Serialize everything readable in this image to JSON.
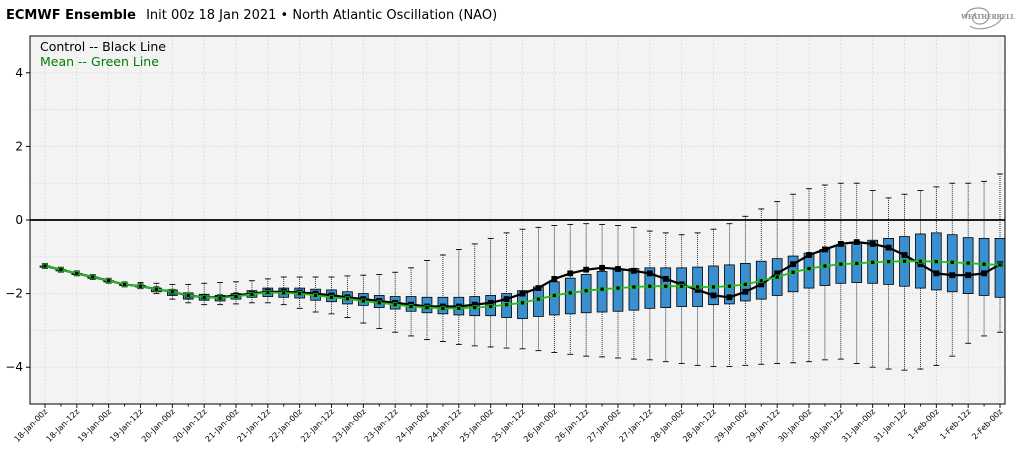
{
  "header": {
    "brand": "ECMWF Ensemble",
    "subtitle": "Init 00z 18 Jan 2021 • North Atlantic Oscillation (NAO)",
    "logo_text": "WEATHERBELL"
  },
  "legend": {
    "control_label": "Control -- Black Line",
    "mean_label": "Mean -- Green Line"
  },
  "colors": {
    "box_fill": "#3a8fd0",
    "control_line": "#000000",
    "mean_line": "#22bb22",
    "mean_label": "#008000",
    "plot_bg": "#f3f3f3"
  },
  "chart_data": {
    "type": "box",
    "title": "ECMWF Ensemble Init 00z 18 Jan 2021 • North Atlantic Oscillation (NAO)",
    "xlabel": "",
    "ylabel": "",
    "ylim": [
      -5,
      5
    ],
    "yticks": [
      4,
      2,
      0,
      -2,
      -4
    ],
    "grid": true,
    "x_tick_labels": [
      "18-Jan-00z",
      "18-Jan-12z",
      "19-Jan-00z",
      "19-Jan-12z",
      "20-Jan-00z",
      "20-Jan-12z",
      "21-Jan-00z",
      "21-Jan-12z",
      "22-Jan-00z",
      "22-Jan-12z",
      "23-Jan-00z",
      "23-Jan-12z",
      "24-Jan-00z",
      "24-Jan-12z",
      "25-Jan-00z",
      "25-Jan-12z",
      "26-Jan-00z",
      "26-Jan-12z",
      "27-Jan-00z",
      "27-Jan-12z",
      "28-Jan-00z",
      "28-Jan-12z",
      "29-Jan-00z",
      "29-Jan-12z",
      "30-Jan-00z",
      "30-Jan-12z",
      "31-Jan-00z",
      "31-Jan-12z",
      "1-Feb-00z",
      "1-Feb-12z",
      "2-Feb-00z"
    ],
    "steps_per_label": 2,
    "steps": 61,
    "control": [
      -1.25,
      -1.35,
      -1.45,
      -1.55,
      -1.65,
      -1.75,
      -1.8,
      -1.88,
      -1.95,
      -2.05,
      -2.1,
      -2.1,
      -2.05,
      -2.0,
      -1.95,
      -1.95,
      -1.97,
      -2.0,
      -2.05,
      -2.1,
      -2.15,
      -2.2,
      -2.25,
      -2.3,
      -2.35,
      -2.35,
      -2.35,
      -2.3,
      -2.25,
      -2.15,
      -2.0,
      -1.85,
      -1.6,
      -1.45,
      -1.35,
      -1.3,
      -1.33,
      -1.38,
      -1.45,
      -1.6,
      -1.75,
      -1.9,
      -2.05,
      -2.1,
      -1.95,
      -1.75,
      -1.45,
      -1.2,
      -0.95,
      -0.8,
      -0.65,
      -0.6,
      -0.65,
      -0.75,
      -0.95,
      -1.2,
      -1.45,
      -1.5,
      -1.5,
      -1.45,
      -1.2
    ],
    "mean": [
      -1.25,
      -1.35,
      -1.45,
      -1.55,
      -1.65,
      -1.75,
      -1.8,
      -1.88,
      -1.95,
      -2.05,
      -2.1,
      -2.12,
      -2.08,
      -2.02,
      -1.97,
      -1.98,
      -2.0,
      -2.05,
      -2.1,
      -2.14,
      -2.2,
      -2.25,
      -2.3,
      -2.35,
      -2.38,
      -2.4,
      -2.4,
      -2.38,
      -2.35,
      -2.3,
      -2.25,
      -2.15,
      -2.05,
      -1.98,
      -1.92,
      -1.88,
      -1.85,
      -1.82,
      -1.8,
      -1.8,
      -1.8,
      -1.82,
      -1.82,
      -1.8,
      -1.75,
      -1.65,
      -1.55,
      -1.42,
      -1.32,
      -1.25,
      -1.2,
      -1.18,
      -1.15,
      -1.13,
      -1.12,
      -1.12,
      -1.13,
      -1.15,
      -1.17,
      -1.2,
      -1.22
    ],
    "box_q1": [
      -1.25,
      -1.35,
      -1.45,
      -1.55,
      -1.65,
      -1.75,
      -1.82,
      -1.95,
      -2.05,
      -2.15,
      -2.18,
      -2.2,
      -2.15,
      -2.1,
      -2.08,
      -2.1,
      -2.12,
      -2.18,
      -2.22,
      -2.28,
      -2.32,
      -2.38,
      -2.42,
      -2.48,
      -2.52,
      -2.55,
      -2.58,
      -2.6,
      -2.6,
      -2.65,
      -2.68,
      -2.62,
      -2.58,
      -2.55,
      -2.52,
      -2.5,
      -2.48,
      -2.45,
      -2.4,
      -2.38,
      -2.35,
      -2.35,
      -2.3,
      -2.28,
      -2.2,
      -2.15,
      -2.05,
      -1.95,
      -1.85,
      -1.78,
      -1.72,
      -1.7,
      -1.72,
      -1.75,
      -1.8,
      -1.85,
      -1.9,
      -1.95,
      -2.0,
      -2.05,
      -2.1
    ],
    "box_q3": [
      -1.25,
      -1.35,
      -1.45,
      -1.55,
      -1.65,
      -1.75,
      -1.78,
      -1.85,
      -1.9,
      -1.98,
      -2.02,
      -2.05,
      -2.0,
      -1.92,
      -1.85,
      -1.85,
      -1.85,
      -1.88,
      -1.9,
      -1.95,
      -2.0,
      -2.05,
      -2.08,
      -2.08,
      -2.1,
      -2.1,
      -2.1,
      -2.08,
      -2.05,
      -2.0,
      -1.92,
      -1.82,
      -1.68,
      -1.58,
      -1.48,
      -1.4,
      -1.35,
      -1.32,
      -1.3,
      -1.3,
      -1.3,
      -1.28,
      -1.25,
      -1.22,
      -1.18,
      -1.12,
      -1.05,
      -0.98,
      -0.9,
      -0.8,
      -0.7,
      -0.6,
      -0.55,
      -0.5,
      -0.45,
      -0.38,
      -0.35,
      -0.4,
      -0.48,
      -0.5,
      -0.5
    ],
    "whisker_low": [
      -1.25,
      -1.35,
      -1.45,
      -1.55,
      -1.65,
      -1.75,
      -1.85,
      -2.0,
      -2.15,
      -2.25,
      -2.3,
      -2.3,
      -2.28,
      -2.25,
      -2.25,
      -2.3,
      -2.4,
      -2.5,
      -2.55,
      -2.65,
      -2.8,
      -2.95,
      -3.05,
      -3.15,
      -3.25,
      -3.3,
      -3.38,
      -3.42,
      -3.45,
      -3.48,
      -3.5,
      -3.55,
      -3.6,
      -3.65,
      -3.7,
      -3.72,
      -3.75,
      -3.78,
      -3.8,
      -3.85,
      -3.9,
      -3.95,
      -3.98,
      -3.98,
      -3.95,
      -3.92,
      -3.9,
      -3.88,
      -3.85,
      -3.8,
      -3.78,
      -3.9,
      -4.0,
      -4.05,
      -4.08,
      -4.05,
      -3.95,
      -3.7,
      -3.35,
      -3.15,
      -3.05
    ],
    "whisker_high": [
      -1.25,
      -1.35,
      -1.45,
      -1.55,
      -1.65,
      -1.75,
      -1.7,
      -1.72,
      -1.75,
      -1.75,
      -1.72,
      -1.7,
      -1.68,
      -1.65,
      -1.6,
      -1.55,
      -1.55,
      -1.55,
      -1.55,
      -1.52,
      -1.5,
      -1.48,
      -1.42,
      -1.3,
      -1.1,
      -0.95,
      -0.8,
      -0.65,
      -0.5,
      -0.35,
      -0.25,
      -0.2,
      -0.15,
      -0.12,
      -0.1,
      -0.12,
      -0.15,
      -0.2,
      -0.3,
      -0.35,
      -0.4,
      -0.35,
      -0.25,
      -0.1,
      0.1,
      0.3,
      0.5,
      0.7,
      0.85,
      0.95,
      1.0,
      1.0,
      0.8,
      0.6,
      0.7,
      0.8,
      0.9,
      1.0,
      1.0,
      1.05,
      1.25
    ]
  }
}
